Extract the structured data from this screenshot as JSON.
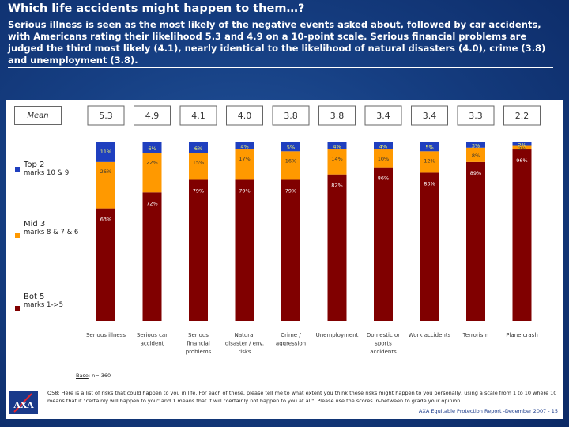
{
  "page": {
    "title": "Which life accidents might happen to them…?",
    "subtitle": "Serious illness is seen as the most likely of the negative events asked about, followed by car accidents, with Americans rating their likelihood 5.3 and 4.9 on a 10-point scale.  Serious financial problems are judged the third most likely (4.1), nearly identical to the likelihood of natural disasters (4.0), crime (3.8) and unemployment (3.8).",
    "mean_label": "Mean",
    "base_label": "Base",
    "base_value": ": n= 360",
    "question": "Q58: Here is a list of risks that could happen to you in life.  For each of these, please tell me to what extent you think these risks might happen to you personally, using a scale from 1 to 10 where 10 means that it \"certainly will happen to you\" and 1 means that it will \"certainly not happen to you at all\".  Please use the scores in-between to grade your opinion.",
    "footer": "AXA Equitable Protection Report -December  2007 - 15",
    "logo_text": "AXA"
  },
  "legend": [
    {
      "label": "Top 2",
      "sub": "marks 10 & 9",
      "color": "#1f3fbf"
    },
    {
      "label": "Mid 3",
      "sub": "marks 8 & 7 & 6",
      "color": "#ff9900"
    },
    {
      "label": "Bot 5",
      "sub": "marks 1->5",
      "color": "#800000"
    }
  ],
  "chart_data": {
    "type": "bar",
    "stacked": true,
    "ylim": [
      0,
      100
    ],
    "categories": [
      [
        "Serious illness"
      ],
      [
        "Serious car",
        "accident"
      ],
      [
        "Serious",
        "financial",
        "problems"
      ],
      [
        "Natural",
        "disaster / env.",
        "risks"
      ],
      [
        "Crime /",
        "aggression"
      ],
      [
        "Unemployment"
      ],
      [
        "Domestic or",
        "sports",
        "accidents"
      ],
      [
        "Work accidents"
      ],
      [
        "Terrorism"
      ],
      [
        "Plane crash"
      ]
    ],
    "means": [
      "5.3",
      "4.9",
      "4.1",
      "4.0",
      "3.8",
      "3.8",
      "3.4",
      "3.4",
      "3.3",
      "2.2"
    ],
    "series": [
      {
        "name": "Bot 5",
        "color": "#800000",
        "values": [
          63,
          72,
          79,
          79,
          79,
          82,
          86,
          83,
          89,
          96
        ]
      },
      {
        "name": "Mid 3",
        "color": "#ff9900",
        "values": [
          26,
          22,
          15,
          17,
          16,
          14,
          10,
          12,
          8,
          2
        ]
      },
      {
        "name": "Top 2",
        "color": "#1f3fbf",
        "values": [
          11,
          6,
          6,
          4,
          5,
          4,
          4,
          5,
          3,
          2
        ]
      }
    ],
    "data_labels": {
      "Bot 5": [
        "63%",
        "72%",
        "79%",
        "79%",
        "79%",
        "82%",
        "86%",
        "83%",
        "89%",
        "96%"
      ],
      "Mid 3": [
        "26%",
        "22%",
        "15%",
        "17%",
        "16%",
        "14%",
        "10%",
        "12%",
        "8%",
        "2%"
      ],
      "Top 2": [
        "11%",
        "6%",
        "6%",
        "4%",
        "5%",
        "4%",
        "4%",
        "5%",
        "3%",
        "2%"
      ]
    },
    "grid": false
  }
}
